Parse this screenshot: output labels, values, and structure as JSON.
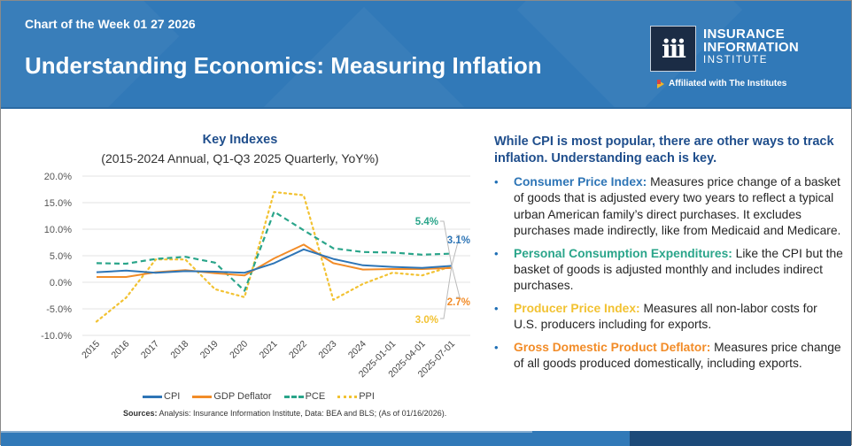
{
  "header": {
    "kicker": "Chart of the Week 01 27 2026",
    "title": "Understanding Economics: Measuring Inflation",
    "logo": {
      "mark": "iii",
      "line1": "INSURANCE",
      "line2": "INFORMATION",
      "line3": "INSTITUTE",
      "affiliation": "Affiliated with The Institutes"
    }
  },
  "chart_data": {
    "type": "line",
    "title": "Key Indexes",
    "subtitle": "(2015-2024 Annual, Q1-Q3 2025 Quarterly, YoY%)",
    "xlabel": "",
    "ylabel": "",
    "ylim": [
      -10,
      20
    ],
    "yticks": [
      20,
      15,
      10,
      5,
      0,
      -5,
      -10
    ],
    "ytick_labels": [
      "20.0%",
      "15.0%",
      "10.0%",
      "5.0%",
      "0.0%",
      "-5.0%",
      "-10.0%"
    ],
    "grid": true,
    "legend_position": "bottom",
    "categories": [
      "2015",
      "2016",
      "2017",
      "2018",
      "2019",
      "2020",
      "2021",
      "2022",
      "2023",
      "2024",
      "2025-01-01",
      "2025-04-01",
      "2025-07-01"
    ],
    "series": [
      {
        "name": "CPI",
        "color": "#2e75b6",
        "style": "solid",
        "values": [
          1.9,
          2.2,
          1.8,
          2.1,
          2.0,
          1.8,
          3.6,
          6.2,
          4.4,
          3.2,
          2.9,
          2.7,
          3.1
        ],
        "end_label": "3.1%"
      },
      {
        "name": "GDP Deflator",
        "color": "#f28c28",
        "style": "solid",
        "values": [
          1.0,
          1.0,
          1.9,
          2.3,
          1.7,
          1.3,
          4.5,
          7.1,
          3.6,
          2.4,
          2.5,
          2.5,
          2.7
        ],
        "end_label": "2.7%"
      },
      {
        "name": "PCE",
        "color": "#2aa58a",
        "style": "dashed",
        "values": [
          3.6,
          3.5,
          4.4,
          4.8,
          3.7,
          -1.6,
          13.3,
          9.8,
          6.4,
          5.7,
          5.6,
          5.2,
          5.4
        ],
        "end_label": "5.4%"
      },
      {
        "name": "PPI",
        "color": "#f2c232",
        "style": "dotted",
        "values": [
          -7.4,
          -2.9,
          4.3,
          4.3,
          -1.3,
          -2.8,
          17.0,
          16.4,
          -3.3,
          -0.3,
          1.8,
          1.3,
          3.0
        ],
        "end_label": "3.0%"
      }
    ],
    "sources_label": "Sources:",
    "sources_text": " Analysis: Insurance Information Institute, Data: BEA and BLS; (As of 01/16/2026)."
  },
  "right": {
    "lead": "While CPI is most popular, there are other ways to track inflation. Understanding each is key.",
    "bullets": [
      {
        "term": "Consumer Price Index:",
        "color": "#2e75b6",
        "text": " Measures price change of a basket of goods that is adjusted every two years to reflect a typical urban American family’s direct purchases. It excludes purchases made indirectly, like from Medicaid and Medicare."
      },
      {
        "term": "Personal Consumption Expenditures:",
        "color": "#2aa58a",
        "text": " Like the CPI but the basket of goods is adjusted monthly and includes indirect purchases."
      },
      {
        "term": "Producer Price Index:",
        "color": "#f2c232",
        "text": " Measures all non-labor costs for U.S. producers including for exports."
      },
      {
        "term": "Gross Domestic Product Deflator:",
        "color": "#f28c28",
        "text": " Measures price change of all goods produced domestically, including exports."
      }
    ],
    "bullet_glyph": "•"
  }
}
